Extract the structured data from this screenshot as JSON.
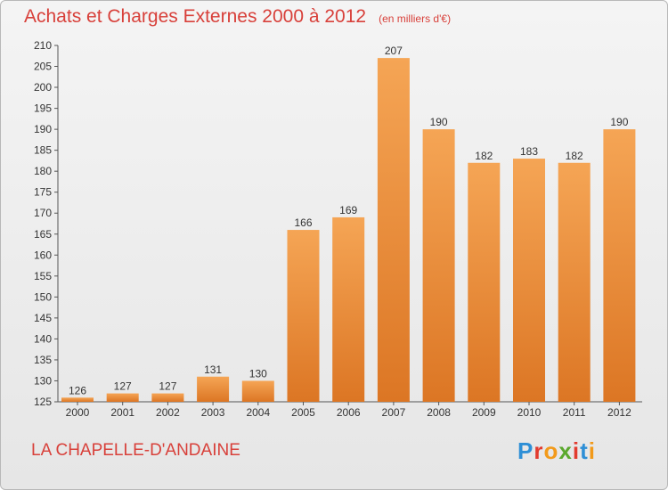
{
  "header": {
    "title": "Achats et Charges Externes 2000 à 2012",
    "unit_note": "(en milliers d'€)"
  },
  "footer": {
    "place": "LA CHAPELLE-D'ANDAINE",
    "logo_text": "Proxiti"
  },
  "colors": {
    "title": "#d8403a",
    "bar_top": "#f5a555",
    "bar_bottom": "#dc7624",
    "logo_letters": [
      "#2e8fd6",
      "#e23b2e",
      "#f29a1a",
      "#5aa82d",
      "#e23b2e",
      "#2e8fd6",
      "#f29a1a"
    ]
  },
  "chart_data": {
    "type": "bar",
    "title": "Achats et Charges Externes 2000 à 2012",
    "subtitle": "(en milliers d'€)",
    "categories": [
      "2000",
      "2001",
      "2002",
      "2003",
      "2004",
      "2005",
      "2006",
      "2007",
      "2008",
      "2009",
      "2010",
      "2011",
      "2012"
    ],
    "values": [
      126,
      127,
      127,
      131,
      130,
      166,
      169,
      207,
      190,
      182,
      183,
      182,
      190
    ],
    "ylim": [
      125,
      210
    ],
    "yticks": [
      125,
      130,
      135,
      140,
      145,
      150,
      155,
      160,
      165,
      170,
      175,
      180,
      185,
      190,
      195,
      200,
      205,
      210
    ],
    "grid": false,
    "data_labels": true
  }
}
